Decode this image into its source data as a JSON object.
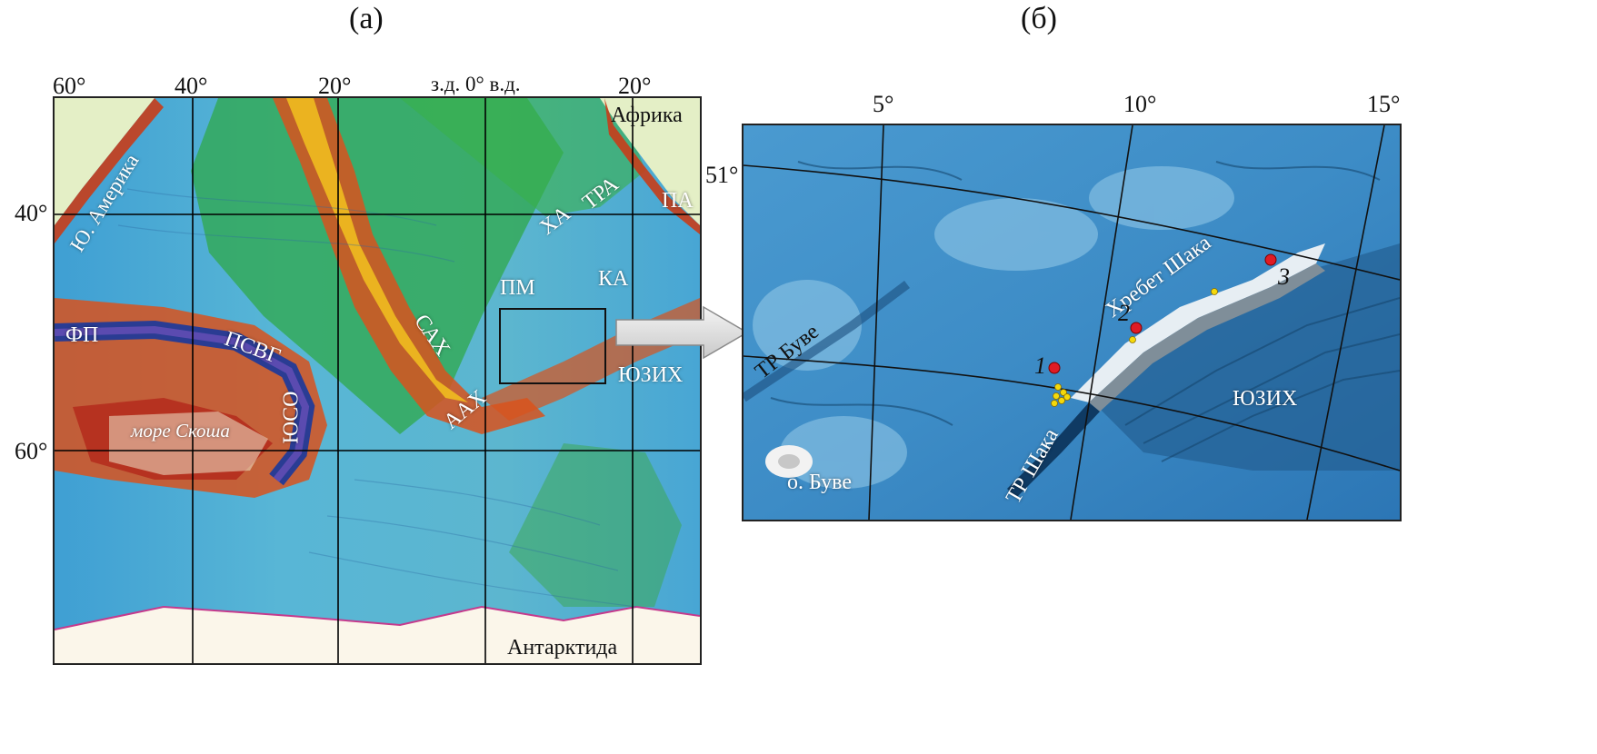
{
  "panels": {
    "a": {
      "letter": "(а)"
    },
    "b": {
      "letter": "(б)"
    }
  },
  "map_a": {
    "top_axis": {
      "w60": "60°",
      "w40": "40°",
      "w20": "20°",
      "meridian": "з.д. 0° в.д.",
      "e20": "20°"
    },
    "left_axis": {
      "s40": "40°",
      "s60": "60°"
    },
    "labels": {
      "yu_amerika": "Ю. Америка",
      "afrika": "Африка",
      "antarktida": "Антарктида",
      "xa": "ХА",
      "tra": "ТРА",
      "pa": "ПА",
      "pm": "ПМ",
      "ka": "КА",
      "fp": "ФП",
      "psvg": "ПСВГ",
      "sax": "САХ",
      "yuzix": "ЮЗИХ",
      "aax": "ААХ",
      "yuso": "ЮСО",
      "more_skosha": "море Скоша"
    }
  },
  "map_b": {
    "top_axis": {
      "e5": "5°",
      "e10": "10°",
      "e15": "15°"
    },
    "left_axis": {
      "s51": "51°"
    },
    "labels": {
      "tr_buve": "ТР Буве",
      "khrebet_shaka": "Хребет Шака",
      "tr_shaka": "ТР Шака",
      "yuzix": "ЮЗИХ",
      "o_buve": "о. Буве"
    },
    "sites": [
      {
        "label": "1",
        "color": "#e01b24"
      },
      {
        "label": "2",
        "color": "#e01b24"
      },
      {
        "label": "3",
        "color": "#e01b24"
      }
    ],
    "yellow_marker_color": "#f5d90a"
  }
}
